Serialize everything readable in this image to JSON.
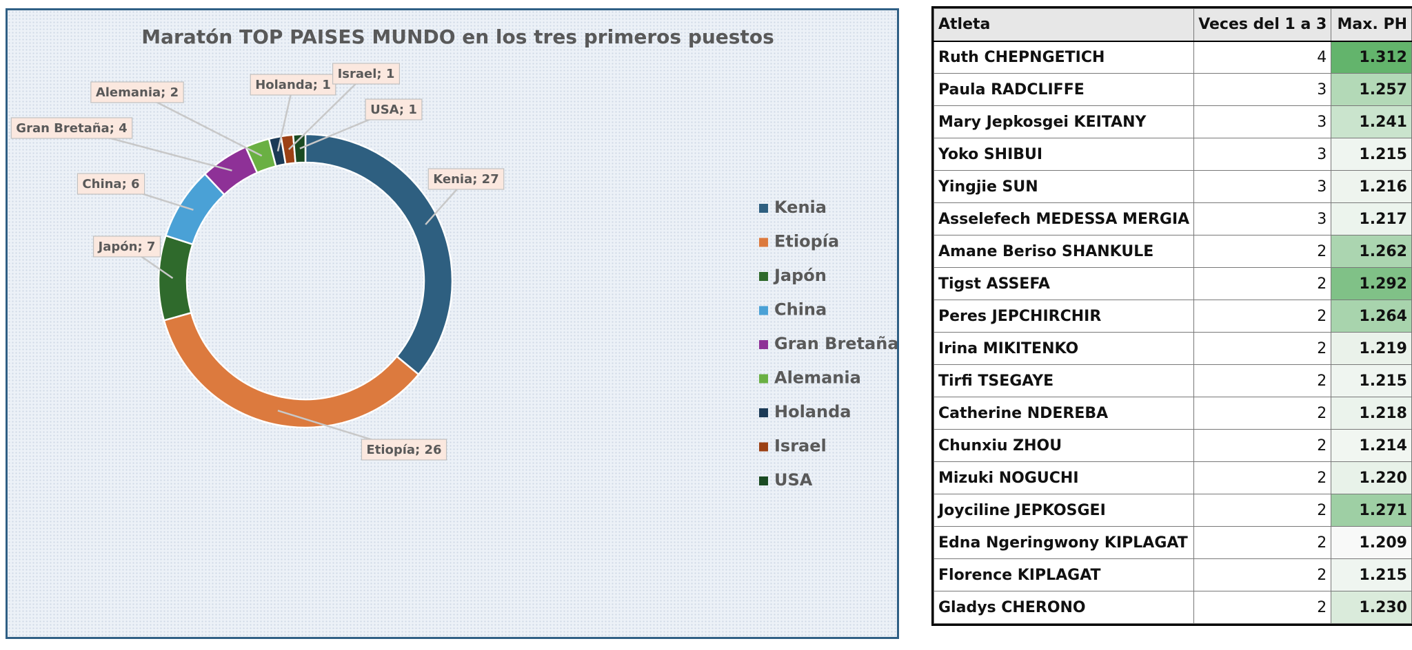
{
  "chart_data": {
    "type": "pie",
    "style": "doughnut",
    "title": "Maratón TOP PAISES MUNDO en los tres primeros puestos",
    "legend_position": "right",
    "categories": [
      "Kenia",
      "Etiopía",
      "Japón",
      "China",
      "Gran Bretaña",
      "Alemania",
      "Holanda",
      "Israel",
      "USA"
    ],
    "values": [
      27,
      26,
      7,
      6,
      4,
      2,
      1,
      1,
      1
    ],
    "data_labels": [
      "Kenia; 27",
      "Etiopía; 26",
      "Japón; 7",
      "China; 6",
      "Gran Bretaña; 4",
      "Alemania; 2",
      "Holanda; 1",
      "Israel; 1",
      "USA; 1"
    ],
    "colors": [
      "#2e5f80",
      "#dc7a3e",
      "#2f6a2c",
      "#4aa1d6",
      "#8e3197",
      "#6ab043",
      "#1b3a56",
      "#9c4115",
      "#1a4a22"
    ]
  },
  "table": {
    "headers": [
      "Atleta",
      "Veces del 1 a 3",
      "Max. PH"
    ],
    "rows": [
      {
        "athlete": "Ruth CHEPNGETICH",
        "times": 4,
        "max_ph": "1.312"
      },
      {
        "athlete": "Paula RADCLIFFE",
        "times": 3,
        "max_ph": "1.257"
      },
      {
        "athlete": "Mary Jepkosgei KEITANY",
        "times": 3,
        "max_ph": "1.241"
      },
      {
        "athlete": "Yoko SHIBUI",
        "times": 3,
        "max_ph": "1.215"
      },
      {
        "athlete": "Yingjie SUN",
        "times": 3,
        "max_ph": "1.216"
      },
      {
        "athlete": "Asselefech MEDESSA MERGIA",
        "times": 3,
        "max_ph": "1.217"
      },
      {
        "athlete": "Amane Beriso SHANKULE",
        "times": 2,
        "max_ph": "1.262"
      },
      {
        "athlete": "Tigst ASSEFA",
        "times": 2,
        "max_ph": "1.292"
      },
      {
        "athlete": "Peres JEPCHIRCHIR",
        "times": 2,
        "max_ph": "1.264"
      },
      {
        "athlete": "Irina MIKITENKO",
        "times": 2,
        "max_ph": "1.219"
      },
      {
        "athlete": "Tirfi TSEGAYE",
        "times": 2,
        "max_ph": "1.215"
      },
      {
        "athlete": "Catherine NDEREBA",
        "times": 2,
        "max_ph": "1.218"
      },
      {
        "athlete": "Chunxiu ZHOU",
        "times": 2,
        "max_ph": "1.214"
      },
      {
        "athlete": "Mizuki NOGUCHI",
        "times": 2,
        "max_ph": "1.220"
      },
      {
        "athlete": "Joyciline JEPKOSGEI",
        "times": 2,
        "max_ph": "1.271"
      },
      {
        "athlete": "Edna Ngeringwony KIPLAGAT",
        "times": 2,
        "max_ph": "1.209"
      },
      {
        "athlete": "Florence KIPLAGAT",
        "times": 2,
        "max_ph": "1.215"
      },
      {
        "athlete": "Gladys CHERONO",
        "times": 2,
        "max_ph": "1.230"
      }
    ],
    "heat_colors": {
      "low": "#f8f9f8",
      "high": "#63b46c"
    }
  }
}
